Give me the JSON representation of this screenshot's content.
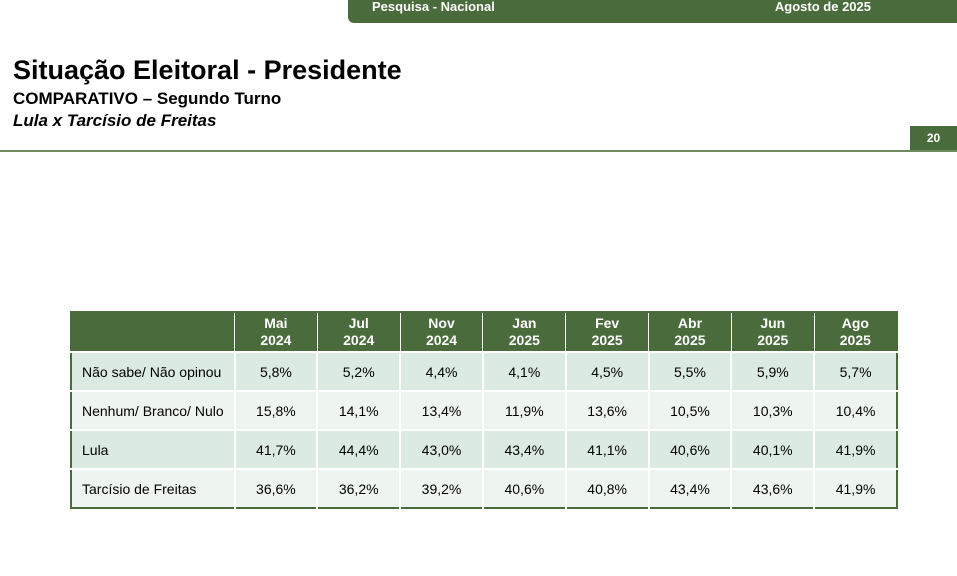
{
  "header": {
    "survey": "Pesquisa - Nacional",
    "date": "Agosto de 2025"
  },
  "title": "Situação Eleitoral - Presidente",
  "subtitle": "COMPARATIVO – Segundo Turno",
  "subtitle2": "Lula x Tarcísio de Freitas",
  "page_number": "20",
  "table": {
    "columns": [
      {
        "month": "Mai",
        "year": "2024"
      },
      {
        "month": "Jul",
        "year": "2024"
      },
      {
        "month": "Nov",
        "year": "2024"
      },
      {
        "month": "Jan",
        "year": "2025"
      },
      {
        "month": "Fev",
        "year": "2025"
      },
      {
        "month": "Abr",
        "year": "2025"
      },
      {
        "month": "Jun",
        "year": "2025"
      },
      {
        "month": "Ago",
        "year": "2025"
      }
    ],
    "rows": [
      {
        "label": "Não sabe/ Não opinou",
        "values": [
          "5,8%",
          "5,2%",
          "4,4%",
          "4,1%",
          "4,5%",
          "5,5%",
          "5,9%",
          "5,7%"
        ]
      },
      {
        "label": "Nenhum/ Branco/ Nulo",
        "values": [
          "15,8%",
          "14,1%",
          "13,4%",
          "11,9%",
          "13,6%",
          "10,5%",
          "10,3%",
          "10,4%"
        ]
      },
      {
        "label": "Lula",
        "values": [
          "41,7%",
          "44,4%",
          "43,0%",
          "43,4%",
          "41,1%",
          "40,6%",
          "40,1%",
          "41,9%"
        ]
      },
      {
        "label": "Tarcísio de Freitas",
        "values": [
          "36,6%",
          "36,2%",
          "39,2%",
          "40,6%",
          "40,8%",
          "43,4%",
          "43,6%",
          "41,9%"
        ]
      }
    ]
  },
  "colors": {
    "accent": "#4a6b3c",
    "row_odd": "#dcebe1",
    "row_even": "#eef5f0"
  }
}
